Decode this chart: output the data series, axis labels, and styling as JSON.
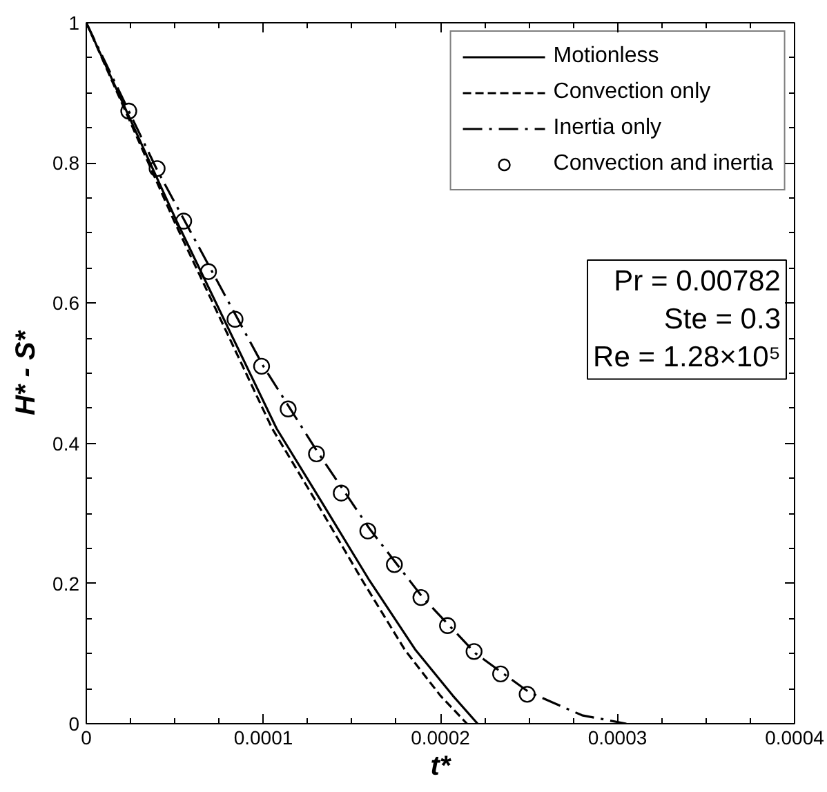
{
  "chart_data": {
    "type": "line",
    "xlabel": "t*",
    "ylabel": "H* - S*",
    "xlim": [
      0,
      0.0004
    ],
    "ylim": [
      0,
      1
    ],
    "xticks": [
      0,
      0.0001,
      0.0002,
      0.0003,
      0.0004
    ],
    "yticks": [
      0,
      0.2,
      0.4,
      0.6,
      0.8,
      1
    ],
    "grid": false,
    "legend": "top right",
    "annotations": [
      "Pr = 0.00782",
      "Ste = 0.3",
      "Re = 1.28×10⁵"
    ],
    "series": [
      {
        "name": "Motionless",
        "type": "line",
        "line_style": "solid",
        "color": "#000000",
        "x": [
          0,
          5.1e-05,
          0.0001075,
          0.000133,
          0.00016,
          0.000186,
          0.000207,
          0.000221
        ],
        "values": [
          1,
          0.717,
          0.421,
          0.316,
          0.204,
          0.105,
          0.04,
          0
        ]
      },
      {
        "name": "Convection only",
        "type": "line",
        "line_style": "dashed",
        "color": "#000000",
        "x": [
          0,
          5e-05,
          0.000105,
          0.00013,
          0.000156,
          0.00018,
          0.0002,
          0.000215
        ],
        "values": [
          1,
          0.715,
          0.421,
          0.316,
          0.204,
          0.105,
          0.04,
          0
        ]
      },
      {
        "name": "Inertia only",
        "type": "line",
        "line_style": "dashdot",
        "color": "#000000",
        "x": [
          0,
          4e-05,
          0.0001,
          0.00013,
          0.00016,
          0.00019,
          0.00022,
          0.00025,
          0.00028,
          0.000305
        ],
        "values": [
          1,
          0.79,
          0.51,
          0.39,
          0.278,
          0.18,
          0.1,
          0.045,
          0.012,
          0
        ]
      },
      {
        "name": "Convection and inertia",
        "type": "scatter",
        "marker": "circle",
        "color": "#000000",
        "x": [
          2.4e-05,
          4e-05,
          5.5e-05,
          6.9e-05,
          8.4e-05,
          9.9e-05,
          0.000114,
          0.00013,
          0.000144,
          0.000159,
          0.000174,
          0.000189,
          0.000204,
          0.000219,
          0.000234,
          0.000249
        ],
        "values": [
          0.874,
          0.792,
          0.717,
          0.645,
          0.577,
          0.51,
          0.449,
          0.385,
          0.329,
          0.275,
          0.227,
          0.18,
          0.14,
          0.103,
          0.071,
          0.042
        ]
      }
    ]
  }
}
